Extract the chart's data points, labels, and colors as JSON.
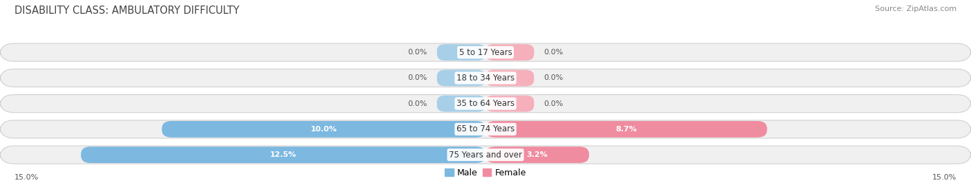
{
  "title": "DISABILITY CLASS: AMBULATORY DIFFICULTY",
  "source": "Source: ZipAtlas.com",
  "categories": [
    "5 to 17 Years",
    "18 to 34 Years",
    "35 to 64 Years",
    "65 to 74 Years",
    "75 Years and over"
  ],
  "male_values": [
    0.0,
    0.0,
    0.0,
    10.0,
    12.5
  ],
  "female_values": [
    0.0,
    0.0,
    0.0,
    8.7,
    3.2
  ],
  "male_labels": [
    "0.0%",
    "0.0%",
    "0.0%",
    "10.0%",
    "12.5%"
  ],
  "female_labels": [
    "0.0%",
    "0.0%",
    "0.0%",
    "8.7%",
    "3.2%"
  ],
  "male_color": "#7cb8e0",
  "female_color": "#f08ca0",
  "bar_bg_color": "#f0f0f0",
  "bar_border_color": "#d0d0d0",
  "stub_male_color": "#a8cfe8",
  "stub_female_color": "#f5b0bc",
  "max_val": 15.0,
  "axis_label_left": "15.0%",
  "axis_label_right": "15.0%",
  "title_fontsize": 10.5,
  "source_fontsize": 8,
  "label_fontsize": 8,
  "cat_fontsize": 8.5,
  "legend_fontsize": 9,
  "background_color": "#ffffff"
}
